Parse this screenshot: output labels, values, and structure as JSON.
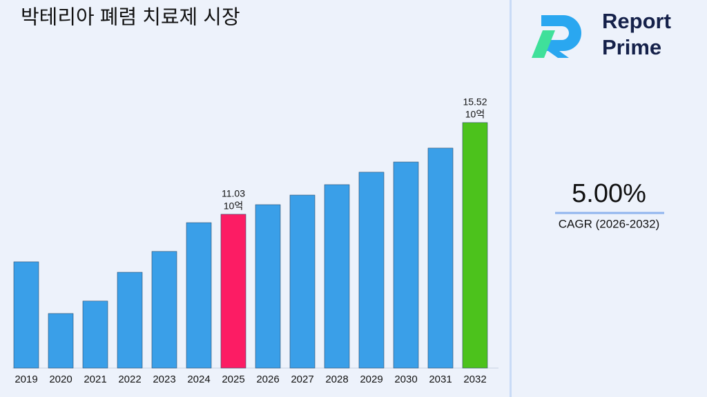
{
  "chart_data": {
    "type": "bar",
    "title": "박테리아 폐렴 치료제 시장",
    "categories": [
      "2019",
      "2020",
      "2021",
      "2022",
      "2023",
      "2024",
      "2025",
      "2026",
      "2027",
      "2028",
      "2029",
      "2030",
      "2031",
      "2032"
    ],
    "values": [
      8.7,
      6.17,
      6.78,
      8.19,
      9.21,
      10.62,
      11.03,
      11.5,
      11.97,
      12.48,
      13.09,
      13.59,
      14.27,
      15.52
    ],
    "value_labels": [
      null,
      null,
      null,
      null,
      null,
      null,
      "11.03",
      null,
      null,
      null,
      null,
      null,
      null,
      "15.52"
    ],
    "value_unit": "10억",
    "colors": [
      "#3a9fe8",
      "#3a9fe8",
      "#3a9fe8",
      "#3a9fe8",
      "#3a9fe8",
      "#3a9fe8",
      "#fc1c64",
      "#3a9fe8",
      "#3a9fe8",
      "#3a9fe8",
      "#3a9fe8",
      "#3a9fe8",
      "#3a9fe8",
      "#4cc21c"
    ],
    "ylim": [
      3.5,
      17
    ],
    "grid": false
  },
  "logo": {
    "line1": "Report",
    "line2": "Prime"
  },
  "cagr": {
    "value": "5.00%",
    "label": "CAGR (2026-2032)"
  }
}
